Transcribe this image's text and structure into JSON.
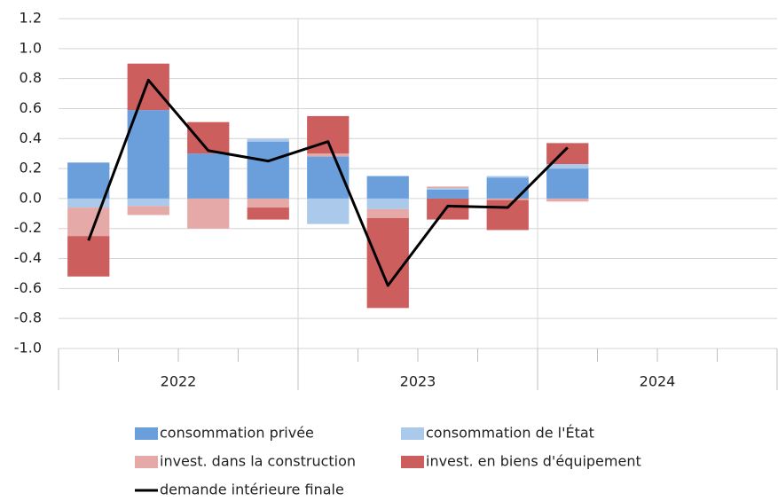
{
  "chart_data": {
    "type": "bar",
    "stacked": true,
    "categories": [
      null,
      null,
      null,
      null,
      null,
      null,
      null,
      null,
      null,
      null,
      null,
      null
    ],
    "x_groups": [
      "2022",
      "2023",
      "2024"
    ],
    "ylim": [
      -1.0,
      1.2
    ],
    "yticks": [
      {
        "value": -1,
        "label": "-1.0"
      },
      -0.8,
      -0.6,
      -0.4,
      -0.2,
      {
        "value": 0,
        "label": "0.0"
      },
      0.2,
      0.4,
      0.6,
      0.8,
      {
        "value": 1,
        "label": "1.0"
      },
      1.2
    ],
    "grid": true,
    "legend": "bottom",
    "series": [
      {
        "name": "consommation privée",
        "color": "#6a9fdc",
        "values": [
          0.24,
          0.59,
          0.3,
          0.38,
          0.28,
          0.15,
          0.06,
          0.14,
          0.2,
          null,
          null,
          null
        ]
      },
      {
        "name": "consommation de l'État",
        "color": "#abc9ea",
        "values": [
          -0.06,
          -0.05,
          0.0,
          0.02,
          -0.17,
          -0.07,
          0.01,
          0.01,
          0.03,
          null,
          null,
          null
        ]
      },
      {
        "name": "invest. dans la construction",
        "color": "#e5a9a8",
        "values": [
          -0.19,
          -0.06,
          -0.2,
          -0.06,
          0.02,
          -0.06,
          0.01,
          -0.01,
          -0.02,
          null,
          null,
          null
        ]
      },
      {
        "name": "invest. en biens d'équipement",
        "color": "#cc5e5e",
        "values": [
          -0.27,
          0.31,
          0.21,
          -0.08,
          0.25,
          -0.6,
          -0.14,
          -0.2,
          0.14,
          null,
          null,
          null
        ]
      },
      {
        "name": "demande intérieure finale",
        "type": "line",
        "color": "#000000",
        "values": [
          -0.28,
          0.79,
          0.32,
          0.25,
          0.38,
          -0.58,
          -0.05,
          -0.06,
          0.34,
          null,
          null,
          null
        ]
      }
    ]
  }
}
